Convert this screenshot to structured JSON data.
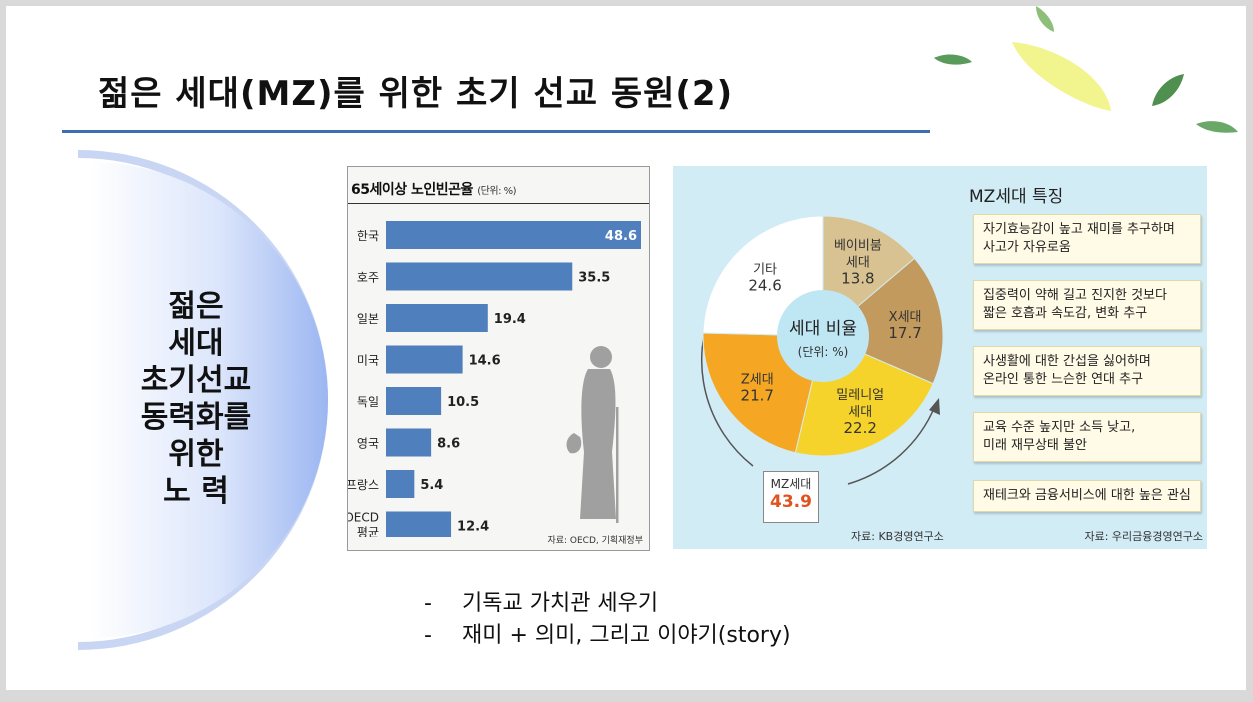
{
  "title": "젊은 세대(MZ)를 위한 초기 선교 동원(2)",
  "left_heading": [
    "젊은",
    "세대",
    "초기선교",
    "동력화를",
    "위한",
    "노 력"
  ],
  "bar_chart": {
    "title": "65세이상 노인빈곤율",
    "unit": "(단위: %)",
    "source": "자료: OECD, 기획재정부"
  },
  "mz_panel": {
    "pie_center_title": "세대 비율",
    "pie_center_unit": "(단위: %)",
    "mz_box_label": "MZ세대",
    "mz_box_value": "43.9",
    "pie_source": "자료: KB경영연구소",
    "features_title": "MZ세대 특징",
    "features": [
      [
        "자기효능감이 높고 재미를 추구하며",
        "사고가 자유로움"
      ],
      [
        "집중력이 약해 길고 진지한 것보다",
        "짧은 호흡과 속도감, 변화 추구"
      ],
      [
        "사생활에 대한 간섭을 싫어하며",
        "온라인 통한 느슨한 연대 추구"
      ],
      [
        "교육 수준 높지만 소득 낮고,",
        "미래 재무상태 불안"
      ],
      [
        "재테크와 금융서비스에 대한 높은 관심"
      ]
    ],
    "features_source": "자료: 우리금융경영연구소"
  },
  "bullets": [
    {
      "dash": "-",
      "text": "기독교 가치관 세우기"
    },
    {
      "dash": "-",
      "text": "재미 + 의미, 그리고 이야기(story)"
    }
  ],
  "colors": {
    "title_rule": "#3c6fb0",
    "bar": "#4f7fbd",
    "pie_babyboom": "#d8c291",
    "pie_x": "#c39a5e",
    "pie_millennial": "#f6d32a",
    "pie_z": "#f5a623",
    "pie_other": "#ffffff",
    "pie_center": "#bfe6f3",
    "panel_bg": "#d2ecf6",
    "mz_value": "#e0531f"
  },
  "chart_data": [
    {
      "type": "bar",
      "orientation": "horizontal",
      "title": "65세이상 노인빈곤율",
      "categories": [
        "한국",
        "호주",
        "일본",
        "미국",
        "독일",
        "영국",
        "프랑스",
        "OECD 평균"
      ],
      "values": [
        48.6,
        35.5,
        19.4,
        14.6,
        10.5,
        8.6,
        5.4,
        12.4
      ],
      "xlim": [
        0,
        48.6
      ]
    },
    {
      "type": "pie",
      "title": "세대 비율",
      "categories": [
        "베이비붐 세대",
        "X세대",
        "밀레니얼 세대",
        "Z세대",
        "기타"
      ],
      "values": [
        13.8,
        17.7,
        22.2,
        21.7,
        24.6
      ],
      "colors": [
        "#d8c291",
        "#c39a5e",
        "#f6d32a",
        "#f5a623",
        "#ffffff"
      ]
    }
  ]
}
